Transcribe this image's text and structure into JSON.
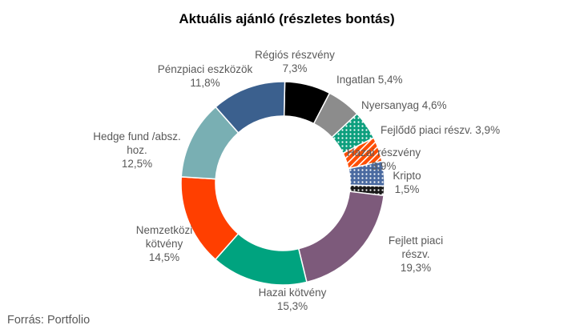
{
  "chart_data": {
    "type": "pie",
    "donut": true,
    "title": "Aktuális ajánló (részletes bontás)",
    "source": "Forrás: Portfolio",
    "slices": [
      {
        "label_lines": [
          "Régiós részvény",
          "7,3%"
        ],
        "value": 7.3,
        "color": "#000000",
        "pattern": "none"
      },
      {
        "label_lines": [
          "Ingatlan 5,4%"
        ],
        "value": 5.4,
        "color": "#8c8c8c",
        "pattern": "none"
      },
      {
        "label_lines": [
          "Nyersanyag 4,6%"
        ],
        "value": 4.6,
        "color": "#0d9f7e",
        "pattern": "dots"
      },
      {
        "label_lines": [
          "Fejlődő piaci részv. 3,9%"
        ],
        "value": 3.9,
        "color": "#ff4d00",
        "pattern": "diagonal"
      },
      {
        "label_lines": [
          "Hazai részvény",
          "3,9%"
        ],
        "value": 3.9,
        "color": "#4a6aa0",
        "pattern": "dots"
      },
      {
        "label_lines": [
          "Kripto",
          "1,5%"
        ],
        "value": 1.5,
        "color": "#1a1a1a",
        "pattern": "dots"
      },
      {
        "label_lines": [
          "Fejlett piaci",
          "részv.",
          "19,3%"
        ],
        "value": 19.3,
        "color": "#7d5a7b",
        "pattern": "none"
      },
      {
        "label_lines": [
          "Hazai kötvény",
          "15,3%"
        ],
        "value": 15.3,
        "color": "#00a37f",
        "pattern": "none"
      },
      {
        "label_lines": [
          "Nemzetközi",
          "kötvény",
          "14,5%"
        ],
        "value": 14.5,
        "color": "#ff3f00",
        "pattern": "none"
      },
      {
        "label_lines": [
          "Hedge fund /absz.",
          "hoz.",
          "12,5%"
        ],
        "value": 12.5,
        "color": "#79afb3",
        "pattern": "none"
      },
      {
        "label_lines": [
          "Pénzpiaci eszközök",
          "11,8%"
        ],
        "value": 11.8,
        "color": "#3b608e",
        "pattern": "none"
      }
    ]
  }
}
